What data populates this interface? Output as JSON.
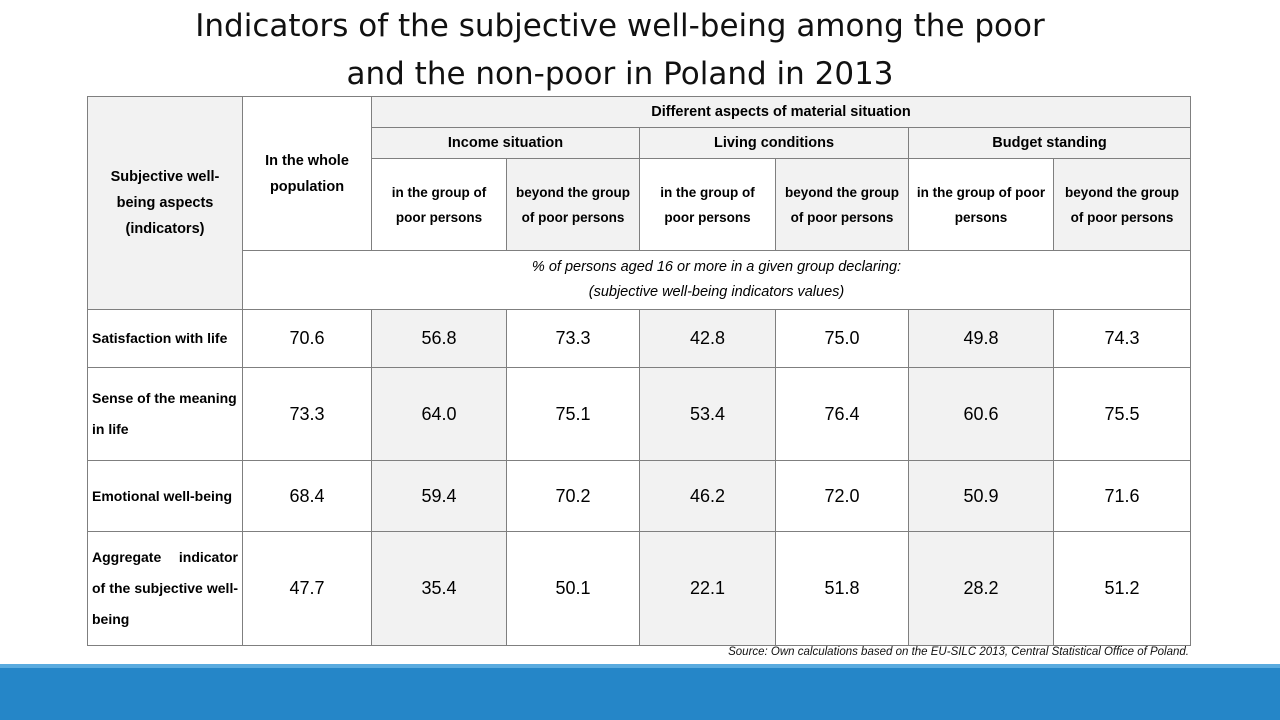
{
  "title": {
    "line1": "Indicators of the subjective well-being among the poor",
    "line2": "and the non-poor in Poland in 2013"
  },
  "table": {
    "corner_label": "Subjective well-being aspects (indicators)",
    "whole_population": "In the  whole population",
    "group_header": "Different aspects of material situation",
    "aspects": [
      "Income situation",
      "Living conditions",
      "Budget standing"
    ],
    "poor_label": "in the group of poor persons",
    "nonpoor_label": "beyond the group of poor persons",
    "note_line1": "% of persons aged 16 or more in a given group declaring:",
    "note_line2": "(subjective well-being indicators values)",
    "rows": [
      {
        "label": "Satisfaction with life",
        "values": [
          "70.6",
          "56.8",
          "73.3",
          "42.8",
          "75.0",
          "49.8",
          "74.3"
        ]
      },
      {
        "label": "Sense of the meaning in life",
        "values": [
          "73.3",
          "64.0",
          "75.1",
          "53.4",
          "76.4",
          "60.6",
          "75.5"
        ]
      },
      {
        "label": "Emotional well-being",
        "values": [
          "68.4",
          "59.4",
          "70.2",
          "46.2",
          "72.0",
          "50.9",
          "71.6"
        ]
      },
      {
        "label": "Aggregate indicator of the subjective well-being",
        "values": [
          "47.7",
          "35.4",
          "50.1",
          "22.1",
          "51.8",
          "28.2",
          "51.2"
        ]
      }
    ]
  },
  "source": "Source: Own calculations based on the EU-SILC 2013, Central Statistical Office of Poland.",
  "colors": {
    "footer_bar": "#2586c8",
    "shaded_cell": "#f2f2f2",
    "border": "#7f7f7f"
  }
}
